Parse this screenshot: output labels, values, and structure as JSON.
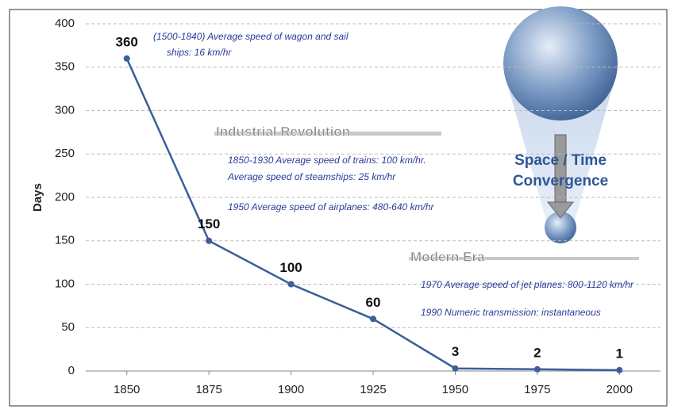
{
  "chart_data": {
    "type": "line",
    "y_label": "Days",
    "categories": [
      "1850",
      "1875",
      "1900",
      "1925",
      "1950",
      "1975",
      "2000"
    ],
    "values": [
      360,
      150,
      100,
      60,
      3,
      2,
      1
    ],
    "color": "#3a5f9a",
    "ylim": [
      0,
      400
    ],
    "yticks": [
      0,
      50,
      100,
      150,
      200,
      250,
      300,
      350,
      400
    ],
    "grid": true,
    "annotations": [
      "(1500-1840) Average speed of wagon and sail",
      "ships: 16 km/hr",
      "Industrial Revolution",
      "1850-1930 Average speed of trains: 100 km/hr.",
      "Average speed of steamships: 25 km/hr",
      "1950 Average speed of airplanes: 480-640 km/hr",
      "Modern Era",
      "1970 Average speed of jet planes: 800-1120 km/hr",
      "1990 Numeric transmission: instantaneous",
      "Space / Time",
      "Convergence"
    ]
  }
}
